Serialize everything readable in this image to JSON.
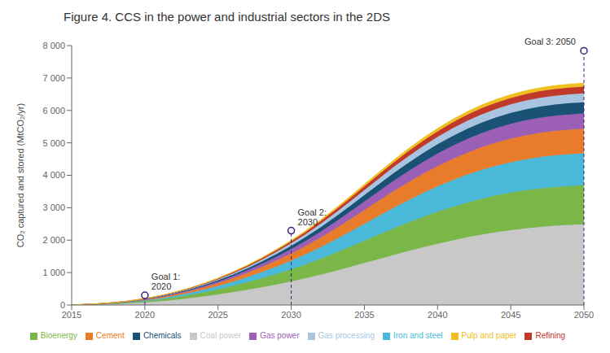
{
  "chart_data": {
    "type": "area",
    "stacked": true,
    "title": "Figure 4. CCS in the power and industrial sectors in the 2DS",
    "y_label": "CO₂ captured and stored (MtCO₂/yr)",
    "x": [
      2015,
      2016,
      2017,
      2018,
      2019,
      2020,
      2021,
      2022,
      2023,
      2024,
      2025,
      2026,
      2027,
      2028,
      2029,
      2030,
      2031,
      2032,
      2033,
      2034,
      2035,
      2036,
      2037,
      2038,
      2039,
      2040,
      2041,
      2042,
      2043,
      2044,
      2045,
      2046,
      2047,
      2048,
      2049,
      2050
    ],
    "series": [
      {
        "name": "Coal power",
        "color": "#c8c8c8",
        "values": [
          0,
          8,
          18,
          32,
          52,
          80,
          115,
          158,
          207,
          263,
          325,
          393,
          468,
          548,
          634,
          725,
          825,
          935,
          1050,
          1170,
          1295,
          1420,
          1545,
          1665,
          1780,
          1890,
          1990,
          2085,
          2170,
          2245,
          2310,
          2365,
          2410,
          2445,
          2470,
          2490
        ]
      },
      {
        "name": "Bioenergy",
        "color": "#7ab648",
        "values": [
          0,
          4,
          9,
          16,
          25,
          38,
          54,
          74,
          98,
          126,
          158,
          194,
          233,
          277,
          324,
          375,
          430,
          490,
          554,
          620,
          688,
          755,
          820,
          880,
          936,
          987,
          1032,
          1071,
          1105,
          1133,
          1155,
          1172,
          1185,
          1193,
          1198,
          1200
        ]
      },
      {
        "name": "Iron and steel",
        "color": "#4ab8d8",
        "values": [
          0,
          3,
          6,
          10,
          16,
          24,
          34,
          47,
          63,
          81,
          103,
          128,
          157,
          190,
          226,
          266,
          310,
          358,
          410,
          464,
          521,
          577,
          633,
          686,
          736,
          782,
          823,
          860,
          891,
          917,
          938,
          955,
          968,
          977,
          983,
          986
        ]
      },
      {
        "name": "Cement",
        "color": "#e87c2a",
        "values": [
          0,
          2,
          5,
          9,
          14,
          21,
          29,
          40,
          53,
          68,
          86,
          107,
          131,
          158,
          188,
          221,
          257,
          295,
          337,
          380,
          425,
          469,
          512,
          552,
          589,
          622,
          651,
          676,
          697,
          714,
          728,
          739,
          747,
          752,
          755,
          757
        ]
      },
      {
        "name": "Gas power",
        "color": "#9b5fb5",
        "values": [
          0,
          1,
          3,
          5,
          8,
          12,
          17,
          24,
          32,
          41,
          52,
          65,
          80,
          97,
          115,
          136,
          158,
          182,
          208,
          235,
          263,
          291,
          318,
          343,
          366,
          387,
          406,
          422,
          435,
          445,
          454,
          460,
          465,
          468,
          470,
          471
        ]
      },
      {
        "name": "Chemicals",
        "color": "#1a5276",
        "values": [
          0,
          1,
          2,
          4,
          6,
          9,
          13,
          18,
          24,
          31,
          39,
          49,
          60,
          72,
          86,
          101,
          118,
          136,
          156,
          177,
          198,
          219,
          239,
          258,
          275,
          290,
          303,
          314,
          324,
          331,
          337,
          342,
          345,
          347,
          348,
          349
        ]
      },
      {
        "name": "Gas processing",
        "color": "#a8c4e0",
        "values": [
          0,
          1,
          2,
          3,
          5,
          7,
          10,
          14,
          19,
          24,
          30,
          38,
          46,
          56,
          67,
          79,
          92,
          106,
          121,
          137,
          154,
          171,
          187,
          202,
          215,
          227,
          237,
          246,
          253,
          259,
          263,
          267,
          269,
          271,
          272,
          273
        ]
      },
      {
        "name": "Refining",
        "color": "#c0392b",
        "values": [
          0,
          1,
          1,
          2,
          4,
          5,
          8,
          11,
          14,
          18,
          23,
          29,
          36,
          43,
          51,
          60,
          70,
          80,
          92,
          104,
          117,
          129,
          142,
          153,
          163,
          172,
          180,
          186,
          191,
          196,
          199,
          202,
          204,
          205,
          206,
          207
        ]
      },
      {
        "name": "Pulp and paper",
        "color": "#f0c020",
        "values": [
          0,
          0,
          1,
          1,
          2,
          3,
          4,
          6,
          7,
          9,
          12,
          15,
          18,
          22,
          26,
          30,
          35,
          40,
          46,
          52,
          59,
          65,
          71,
          77,
          82,
          87,
          91,
          94,
          97,
          99,
          101,
          102,
          103,
          104,
          104,
          105
        ]
      }
    ],
    "xlim": [
      2015,
      2050
    ],
    "xticks": [
      2015,
      2020,
      2025,
      2030,
      2035,
      2040,
      2045,
      2050
    ],
    "ylim": [
      0,
      8000
    ],
    "yticks": [
      0,
      {
        "value": 1000,
        "label": "1 000"
      },
      {
        "value": 2000,
        "label": "2 000"
      },
      {
        "value": 3000,
        "label": "3 000"
      },
      {
        "value": 4000,
        "label": "4 000"
      },
      {
        "value": 5000,
        "label": "5 000"
      },
      {
        "value": 6000,
        "label": "6 000"
      },
      {
        "value": 7000,
        "label": "7 000"
      },
      {
        "value": 8000,
        "label": "8 000"
      }
    ],
    "grid": false,
    "legend": "bottom",
    "annotations": [
      {
        "x": 2020,
        "y": 299,
        "text": "Goal 1:\n2020",
        "color": "#3d1f7a"
      },
      {
        "x": 2030,
        "y": 2293,
        "text": "Goal 2:\n2030",
        "color": "#3d1f7a"
      },
      {
        "x": 2050,
        "y": 7838,
        "text": "Goal 3: 2050",
        "color": "#3d1f7a"
      }
    ]
  }
}
